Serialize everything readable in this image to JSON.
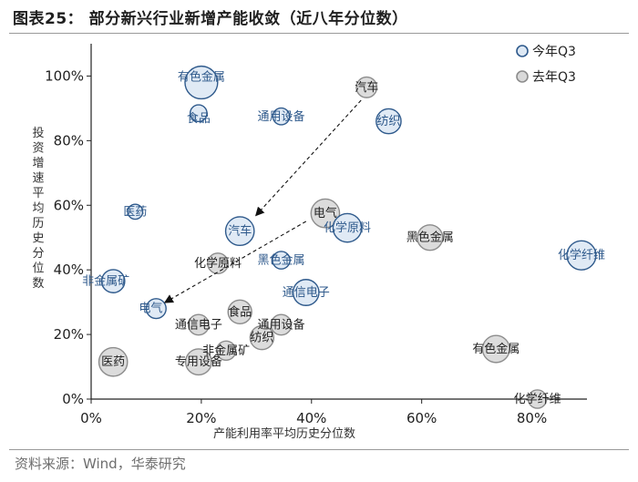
{
  "header": {
    "title": "图表25：  部分新兴行业新增产能收敛（近八年分位数）"
  },
  "footer": {
    "source": "资料来源：Wind，华泰研究"
  },
  "chart_data": {
    "type": "scatter",
    "title": "图表25：  部分新兴行业新增产能收敛（近八年分位数）",
    "xlabel": "产能利用率平均历史分位数",
    "ylabel": "投资增速平均历史分位数",
    "xlim": [
      0,
      0.9
    ],
    "ylim": [
      0,
      1.1
    ],
    "x_ticks": [
      "0%",
      "20%",
      "40%",
      "60%",
      "80%"
    ],
    "y_ticks": [
      "0%",
      "20%",
      "40%",
      "60%",
      "80%",
      "100%"
    ],
    "grid": false,
    "legend_position": "top-right",
    "colors": {
      "this_year": "#dde8f4",
      "this_year_edge": "#2f5a8c",
      "last_year": "#d9d9d9",
      "last_year_edge": "#8c8c8c"
    },
    "series": [
      {
        "name": "今年Q3",
        "points": [
          {
            "label": "有色金属",
            "x": 0.2,
            "y": 0.98,
            "size": 1.9
          },
          {
            "label": "食品",
            "x": 0.195,
            "y": 0.885,
            "size": 0.5
          },
          {
            "label": "通用设备",
            "x": 0.345,
            "y": 0.875,
            "size": 0.5
          },
          {
            "label": "纺织",
            "x": 0.54,
            "y": 0.86,
            "size": 1.1
          },
          {
            "label": "医药",
            "x": 0.08,
            "y": 0.58,
            "size": 0.4
          },
          {
            "label": "汽车",
            "x": 0.27,
            "y": 0.52,
            "size": 1.45
          },
          {
            "label": "化学原料",
            "x": 0.465,
            "y": 0.53,
            "size": 1.45
          },
          {
            "label": "黑色金属",
            "x": 0.345,
            "y": 0.43,
            "size": 0.55
          },
          {
            "label": "非金属矿",
            "x": 0.04,
            "y": 0.365,
            "size": 0.95
          },
          {
            "label": "通信电子",
            "x": 0.39,
            "y": 0.33,
            "size": 1.2
          },
          {
            "label": "电气",
            "x": 0.118,
            "y": 0.28,
            "size": 0.7
          },
          {
            "label": "化学纤维",
            "x": 0.89,
            "y": 0.445,
            "size": 1.5
          }
        ]
      },
      {
        "name": "去年Q3",
        "points": [
          {
            "label": "汽车",
            "x": 0.5,
            "y": 0.965,
            "size": 0.75
          },
          {
            "label": "电气",
            "x": 0.425,
            "y": 0.575,
            "size": 1.45
          },
          {
            "label": "黑色金属",
            "x": 0.615,
            "y": 0.5,
            "size": 1.15
          },
          {
            "label": "化学原料",
            "x": 0.23,
            "y": 0.42,
            "size": 0.75
          },
          {
            "label": "食品",
            "x": 0.27,
            "y": 0.27,
            "size": 1.0
          },
          {
            "label": "通信电子",
            "x": 0.195,
            "y": 0.23,
            "size": 0.75
          },
          {
            "label": "通用设备",
            "x": 0.345,
            "y": 0.23,
            "size": 0.75
          },
          {
            "label": "纺织",
            "x": 0.31,
            "y": 0.19,
            "size": 1.0
          },
          {
            "label": "非金属矿",
            "x": 0.245,
            "y": 0.15,
            "size": 0.65
          },
          {
            "label": "专用设备",
            "x": 0.195,
            "y": 0.115,
            "size": 1.2
          },
          {
            "label": "医药",
            "x": 0.04,
            "y": 0.115,
            "size": 1.45
          },
          {
            "label": "有色金属",
            "x": 0.735,
            "y": 0.155,
            "size": 1.3
          },
          {
            "label": "化学纤维",
            "x": 0.81,
            "y": 0.0,
            "size": 0.6
          }
        ]
      }
    ],
    "arrows": [
      {
        "from": "汽车",
        "from_x": 0.49,
        "from_y": 0.925,
        "to_x": 0.3,
        "to_y": 0.57
      },
      {
        "from": "电气",
        "from_x": 0.39,
        "from_y": 0.55,
        "to_x": 0.135,
        "to_y": 0.3
      }
    ]
  }
}
